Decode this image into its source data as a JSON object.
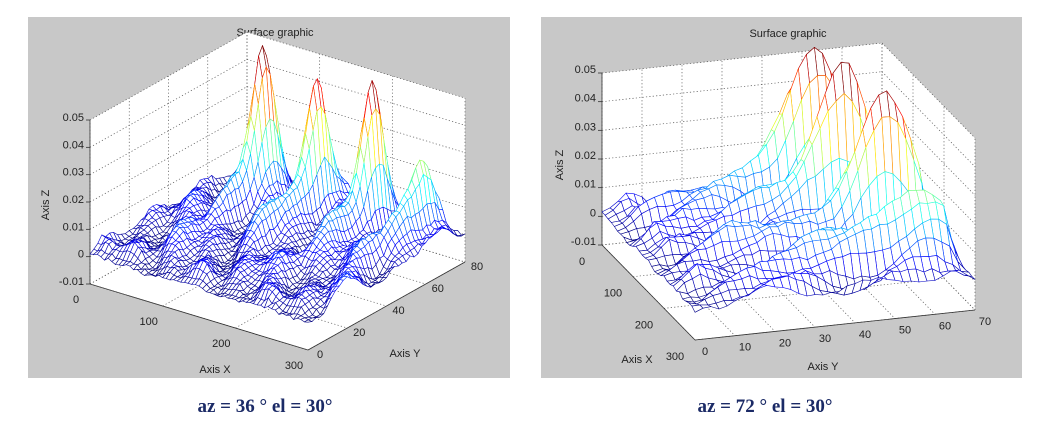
{
  "chart_data": [
    {
      "type": "surface-mesh",
      "title": "Surface graphic",
      "xlabel": "Axis X",
      "ylabel": "Axis Y",
      "zlabel": "Axis Z",
      "xlim": [
        0,
        300
      ],
      "ylim": [
        0,
        80
      ],
      "zlim": [
        -0.01,
        0.05
      ],
      "xticks": [
        "0",
        "100",
        "200",
        "300"
      ],
      "yticks": [
        "0",
        "20",
        "40",
        "60",
        "80"
      ],
      "zticks": [
        "-0.01",
        "0",
        "0.01",
        "0.02",
        "0.03",
        "0.04",
        "0.05"
      ],
      "view": {
        "az": 36,
        "el": 30
      },
      "grid": true,
      "colormap": "jet",
      "peaks": [
        {
          "x": 70,
          "y": 62,
          "z": 0.05
        },
        {
          "x": 140,
          "y": 64,
          "z": 0.048
        },
        {
          "x": 210,
          "y": 66,
          "z": 0.046
        },
        {
          "x": 270,
          "y": 70,
          "z": 0.022
        }
      ],
      "caption": "az = 36 °    el = 30°"
    },
    {
      "type": "surface-mesh",
      "title": "Surface graphic",
      "xlabel": "Axis X",
      "ylabel": "Axis Y",
      "zlabel": "Axis Z",
      "xlim": [
        0,
        300
      ],
      "ylim": [
        0,
        70
      ],
      "zlim": [
        -0.01,
        0.05
      ],
      "xticks": [
        "0",
        "100",
        "200",
        "300"
      ],
      "yticks": [
        "0",
        "10",
        "20",
        "30",
        "40",
        "50",
        "60",
        "70"
      ],
      "zticks": [
        "-0.01",
        "0",
        "0.01",
        "0.02",
        "0.03",
        "0.04",
        "0.05"
      ],
      "view": {
        "az": 72,
        "el": 30
      },
      "grid": true,
      "colormap": "jet",
      "peaks": [
        {
          "x": 40,
          "y": 50,
          "z": 0.05
        },
        {
          "x": 100,
          "y": 53,
          "z": 0.048
        },
        {
          "x": 170,
          "y": 57,
          "z": 0.044
        },
        {
          "x": 240,
          "y": 62,
          "z": 0.02
        }
      ],
      "caption": "az = 72 °    el = 30°"
    }
  ],
  "colors": {
    "panel_bg": "#c8c8c8",
    "caption": "#1b2a66"
  }
}
